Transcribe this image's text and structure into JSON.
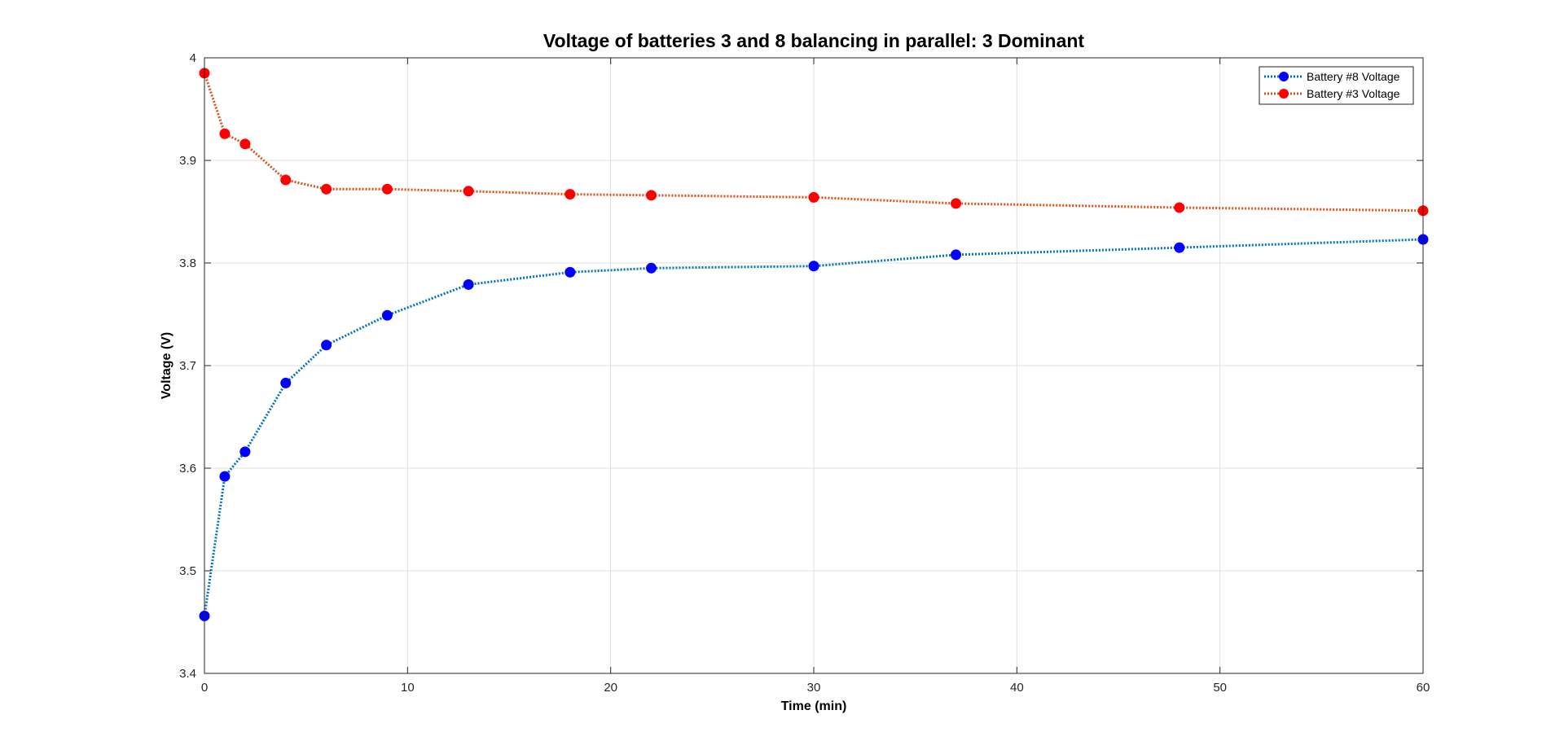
{
  "chart_data": {
    "type": "line",
    "title": "Voltage of batteries 3 and 8 balancing in parallel: 3 Dominant",
    "xlabel": "Time (min)",
    "ylabel": "Voltage (V)",
    "xlim": [
      0,
      60
    ],
    "ylim": [
      3.4,
      4
    ],
    "xticks": [
      0,
      10,
      20,
      30,
      40,
      50,
      60
    ],
    "xtick_labels": [
      "0",
      "10",
      "20",
      "30",
      "40",
      "50",
      "60"
    ],
    "yticks": [
      3.4,
      3.5,
      3.6,
      3.7,
      3.8,
      3.9,
      4
    ],
    "ytick_labels": [
      "3.4",
      "3.5",
      "3.6",
      "3.7",
      "3.8",
      "3.9",
      "4"
    ],
    "grid": true,
    "legend_position": "top-right",
    "x": [
      0,
      1,
      2,
      4,
      6,
      9,
      13,
      18,
      22,
      30,
      37,
      48,
      60
    ],
    "series": [
      {
        "name": "Battery #8 Voltage",
        "line_color": "#0072BD",
        "marker_color": "#0000FF",
        "line_style": "dotted",
        "values": [
          3.456,
          3.592,
          3.616,
          3.683,
          3.72,
          3.749,
          3.779,
          3.791,
          3.795,
          3.797,
          3.808,
          3.815,
          3.823
        ]
      },
      {
        "name": "Battery #3 Voltage",
        "line_color": "#D95319",
        "marker_color": "#FF0000",
        "line_style": "dotted",
        "values": [
          3.985,
          3.926,
          3.916,
          3.881,
          3.872,
          3.872,
          3.87,
          3.867,
          3.866,
          3.864,
          3.858,
          3.854,
          3.851
        ]
      }
    ]
  }
}
